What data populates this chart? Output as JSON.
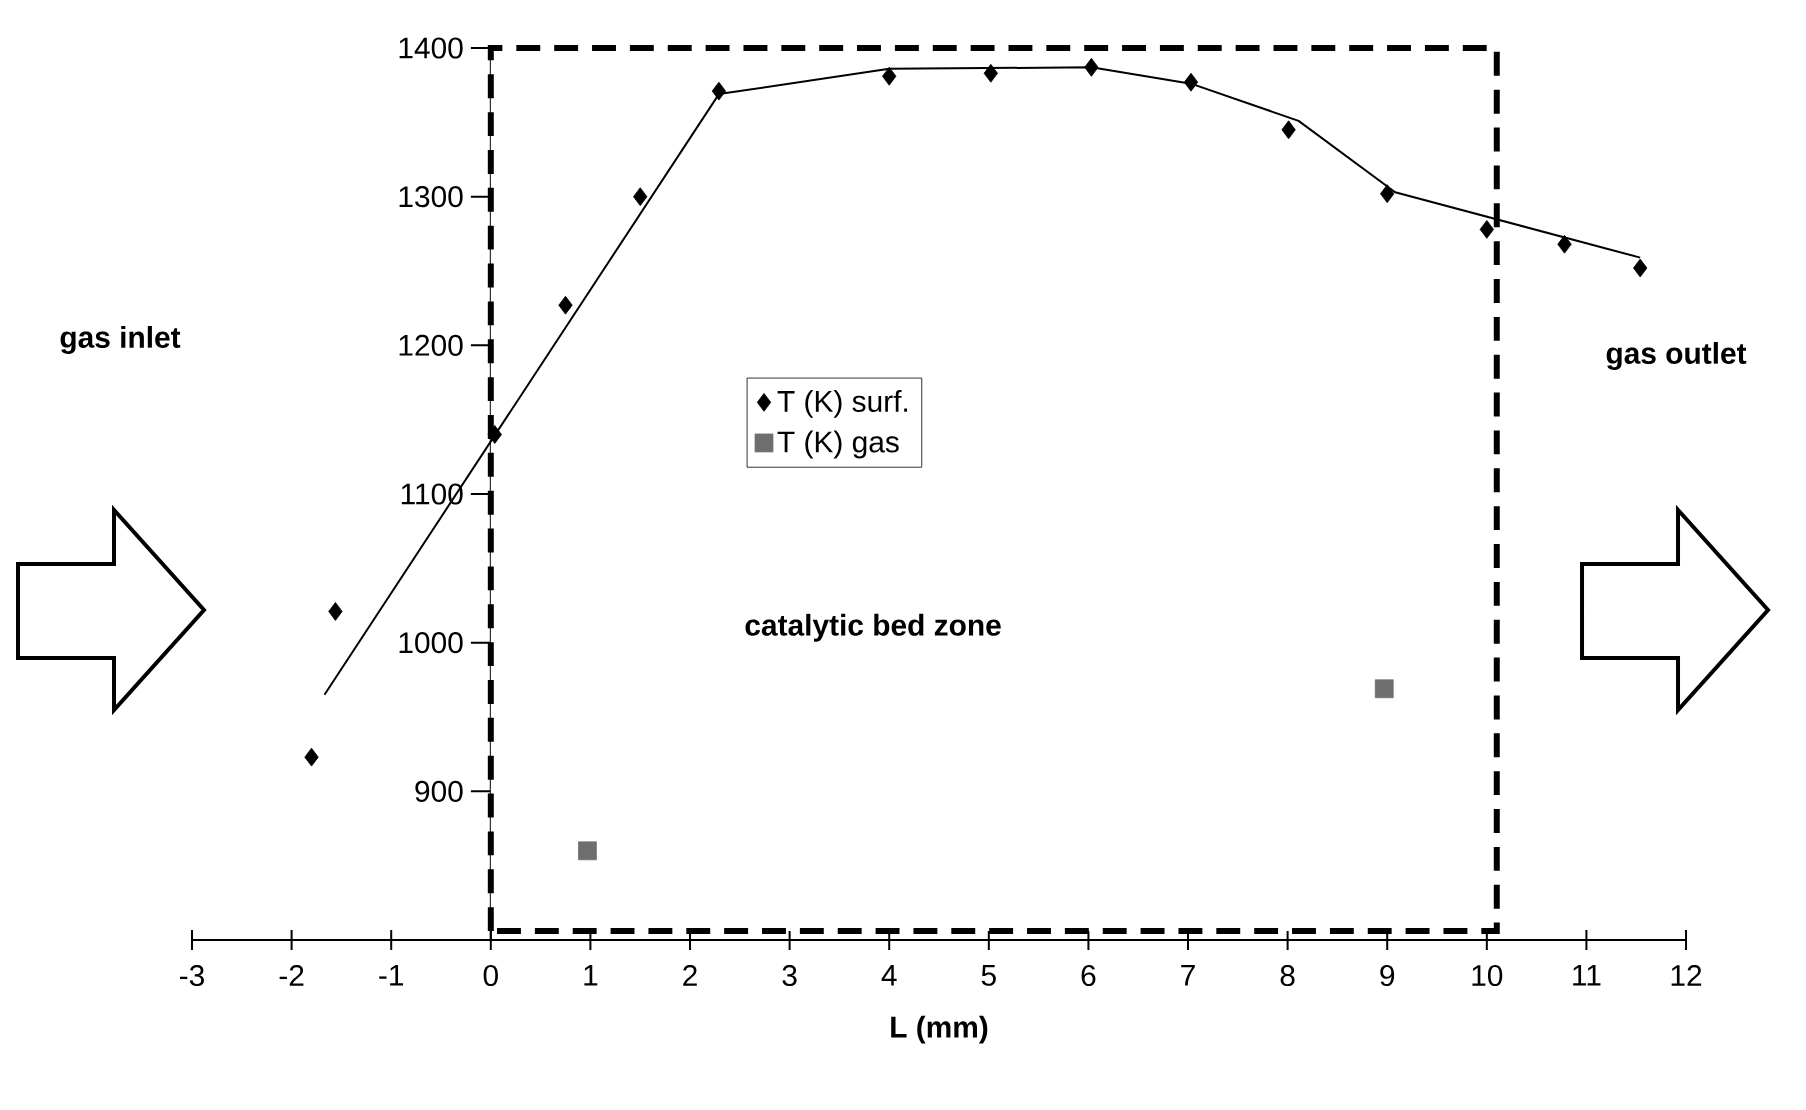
{
  "chart_data": {
    "type": "scatter",
    "xlabel": "L (mm)",
    "xlim": [
      -3,
      12
    ],
    "xticks": [
      -3,
      -2,
      -1,
      0,
      1,
      2,
      3,
      4,
      5,
      6,
      7,
      8,
      9,
      10,
      11,
      12
    ],
    "ylim": [
      800,
      1400
    ],
    "yticks": [
      900,
      1000,
      1100,
      1200,
      1300,
      1400
    ],
    "series": [
      {
        "name": "T (K) surf.",
        "marker": "diamond",
        "color": "#000000",
        "x": [
          -1.8,
          -1.56,
          0.04,
          0.75,
          1.5,
          2.29,
          4.0,
          5.02,
          6.03,
          7.03,
          8.01,
          9.0,
          10.0,
          10.78,
          11.54
        ],
        "values": [
          923,
          1021,
          1140,
          1227,
          1300,
          1371,
          1381,
          1383,
          1387,
          1377,
          1345,
          1302,
          1278,
          1268,
          1252
        ]
      },
      {
        "name": "T (K) gas",
        "marker": "square",
        "color": "#6e6e6e",
        "x": [
          0.97,
          8.97
        ],
        "values": [
          860,
          969
        ]
      },
      {
        "type": "line",
        "marker": "none",
        "line_style": "solid",
        "color": "#000000",
        "x": [
          -1.67,
          2.29,
          4.0,
          6.03,
          7.03,
          8.11,
          9.08,
          11.54
        ],
        "values": [
          965,
          1369,
          1386,
          1387,
          1376,
          1351,
          1303,
          1259
        ]
      }
    ],
    "bands": [
      {
        "axis": "x",
        "from": 0,
        "to": 10.1,
        "label": "catalytic bed zone",
        "color": "#000000"
      }
    ],
    "annotations": [
      "gas inlet",
      "gas outlet"
    ],
    "legend": "center",
    "grid": false
  }
}
